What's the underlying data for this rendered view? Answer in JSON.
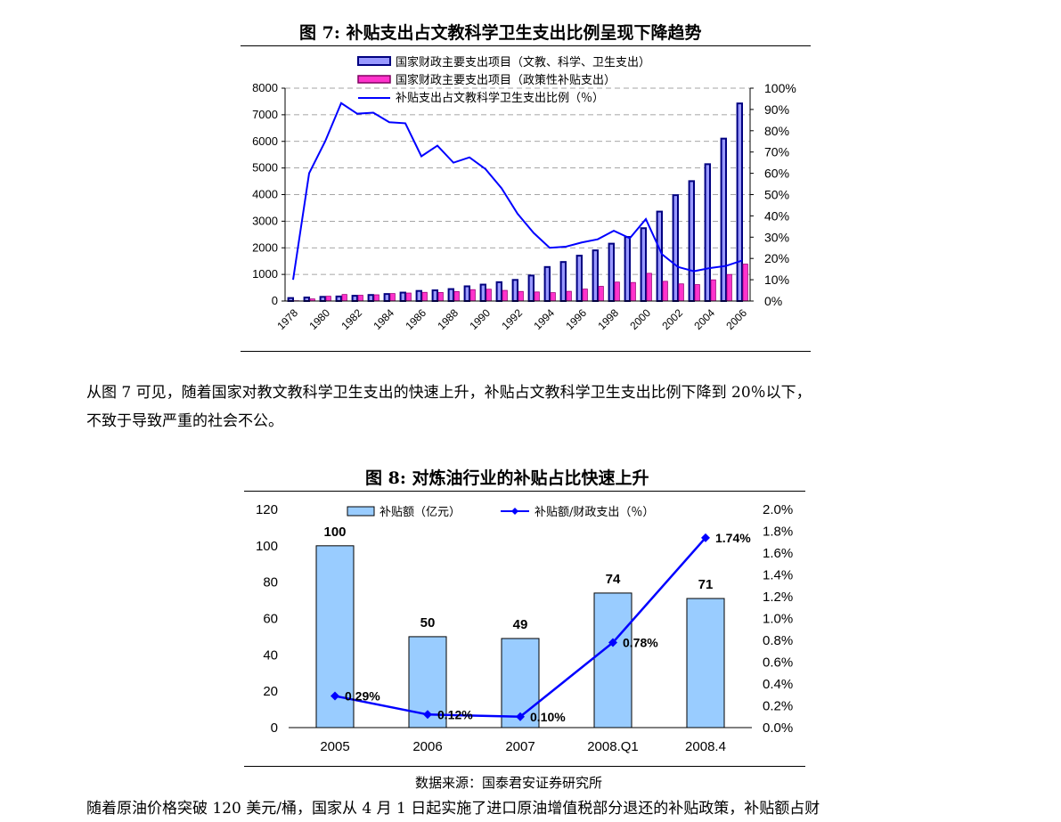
{
  "figure7": {
    "title": "图 7:    补贴支出占文教科学卫生支出比例呈现下降趋势"
  },
  "paragraph1": {
    "line1": "从图 7 可见，随着国家对教文教科学卫生支出的快速上升，补贴占文教科学卫生支出比例下降到 20％以下，",
    "line2": "不致于导致严重的社会不公。"
  },
  "figure8": {
    "title": "图 8:    对炼油行业的补贴占比快速上升"
  },
  "source": "数据来源：国泰君安证券研究所",
  "paragraph2": {
    "line1": "随着原油价格突破 120 美元/桶，国家从 4 月 1 日起实施了进口原油增值税部分退还的补贴政策，补贴额占财"
  },
  "chart_data": [
    {
      "type": "bar",
      "categories": [
        "1978",
        "1979",
        "1980",
        "1981",
        "1982",
        "1983",
        "1984",
        "1985",
        "1986",
        "1987",
        "1988",
        "1989",
        "1990",
        "1991",
        "1992",
        "1993",
        "1994",
        "1995",
        "1996",
        "1997",
        "1998",
        "1999",
        "2000",
        "2001",
        "2002",
        "2003",
        "2004",
        "2005",
        "2006"
      ],
      "x_tick_labels": [
        "1978",
        "1980",
        "1982",
        "1984",
        "1986",
        "1988",
        "1990",
        "1992",
        "1994",
        "1996",
        "1998",
        "2000",
        "2002",
        "2004",
        "2006"
      ],
      "series": [
        {
          "name": "国家财政主要支出项目（文教、科学、卫生支出）",
          "kind": "bar",
          "axis": "left",
          "values": [
            112,
            132,
            156,
            171,
            197,
            227,
            263,
            316,
            379,
            402,
            449,
            553,
            617,
            708,
            793,
            958,
            1278,
            1467,
            1704,
            1904,
            2155,
            2408,
            2737,
            3361,
            3979,
            4506,
            5143,
            6104,
            7426
          ]
        },
        {
          "name": "国家财政主要支出项目（政策性补贴支出）",
          "kind": "bar",
          "axis": "left",
          "values": [
            11,
            79,
            180,
            246,
            217,
            234,
            281,
            300,
            326,
            322,
            355,
            428,
            444,
            400,
            360,
            340,
            315,
            365,
            450,
            552,
            712,
            697,
            1042,
            741,
            645,
            618,
            796,
            998,
            1388
          ]
        },
        {
          "name": "补贴支出占文教科学卫生支出比例（％）",
          "kind": "line",
          "axis": "right",
          "values": [
            10,
            60,
            75,
            93,
            88,
            88.5,
            84,
            83.5,
            68,
            73,
            65,
            67.5,
            62,
            53,
            41,
            32,
            25,
            25.5,
            27.5,
            29,
            33,
            29.5,
            38.5,
            22,
            16,
            14,
            15.5,
            16.5,
            19
          ]
        }
      ],
      "ylim_left": [
        0,
        8000
      ],
      "yticks_left": [
        "0",
        "1000",
        "2000",
        "3000",
        "4000",
        "5000",
        "6000",
        "7000",
        "8000"
      ],
      "ylim_right": [
        0,
        100
      ],
      "yticks_right": [
        "0%",
        "10%",
        "20%",
        "30%",
        "40%",
        "50%",
        "60%",
        "70%",
        "80%",
        "90%",
        "100%"
      ],
      "grid": true,
      "legend": "top-center",
      "colors": {
        "bar1_fill": "#9999ff",
        "bar1_stroke": "#000080",
        "bar2_fill": "#ff33cc",
        "line": "#0000ff"
      }
    },
    {
      "type": "bar",
      "categories": [
        "2005",
        "2006",
        "2007",
        "2008.Q1",
        "2008.4"
      ],
      "series": [
        {
          "name": "补贴额（亿元）",
          "kind": "bar",
          "axis": "left",
          "values": [
            100,
            50,
            49,
            74,
            71
          ],
          "labels": [
            "100",
            "50",
            "49",
            "74",
            "71"
          ]
        },
        {
          "name": "补贴额/财政支出（％）",
          "kind": "line",
          "axis": "right",
          "values": [
            0.29,
            0.12,
            0.1,
            0.78,
            1.74
          ],
          "labels": [
            "0.29%",
            "0.12%",
            "0.10%",
            "0.78%",
            "1.74%"
          ]
        }
      ],
      "ylim_left": [
        0,
        120
      ],
      "yticks_left": [
        "0",
        "20",
        "40",
        "60",
        "80",
        "100",
        "120"
      ],
      "ylim_right": [
        0,
        2.0
      ],
      "yticks_right": [
        "0.0%",
        "0.2%",
        "0.4%",
        "0.6%",
        "0.8%",
        "1.0%",
        "1.2%",
        "1.4%",
        "1.6%",
        "1.8%",
        "2.0%"
      ],
      "grid": false,
      "legend": "top-center",
      "colors": {
        "bar_fill": "#99ccff",
        "bar_stroke": "#000000",
        "line": "#0000ff"
      }
    }
  ]
}
